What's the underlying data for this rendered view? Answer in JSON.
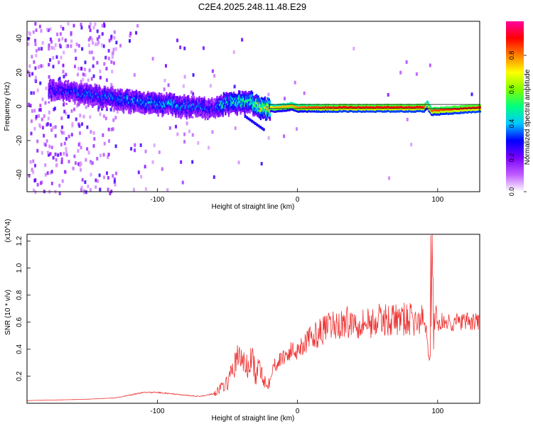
{
  "title": "C2E4.2025.248.11.48.E29",
  "chart_data": [
    {
      "type": "heatmap",
      "title": "C2E4.2025.248.11.48.E29",
      "xlabel": "Height of straight line (km)",
      "ylabel": "Frequency (Hz)",
      "xlim": [
        -193,
        130
      ],
      "ylim": [
        -50,
        50
      ],
      "xticks": [
        -100,
        0,
        100
      ],
      "xtick_labels": [
        "-100",
        "0",
        "100"
      ],
      "yticks": [
        -40,
        -20,
        0,
        20,
        40
      ],
      "ytick_labels": [
        "-40",
        "-20",
        "0",
        "20",
        "40"
      ],
      "colorbar": {
        "label": "Normalized spectral amplitude",
        "range": [
          0,
          1
        ],
        "ticks": [
          0,
          0.2,
          0.4,
          0.6,
          0.8
        ],
        "tick_labels": [
          "0.0",
          "0.2",
          "0.4",
          "0.6",
          "0.8"
        ],
        "colors": [
          "#ffffff",
          "#c05cff",
          "#7a00ff",
          "#0000ff",
          "#00c8ff",
          "#00ff80",
          "#80ff00",
          "#ffff00",
          "#ff8000",
          "#ff0000",
          "#ff00a0"
        ]
      },
      "ridge": {
        "x": [
          -170,
          -150,
          -130,
          -110,
          -90,
          -70,
          -60,
          -55,
          -45,
          -35,
          -25,
          -15,
          -5,
          0,
          10,
          30,
          60,
          90,
          92,
          95,
          130
        ],
        "frequency": [
          10,
          8,
          5,
          3,
          2,
          0,
          -1,
          2,
          3,
          4,
          0,
          0,
          1,
          0,
          0,
          0,
          0,
          0,
          2,
          -2,
          0
        ],
        "amplitude": [
          0.3,
          0.35,
          0.35,
          0.4,
          0.4,
          0.35,
          0.3,
          0.45,
          0.5,
          0.5,
          0.7,
          0.8,
          0.8,
          0.85,
          0.9,
          0.95,
          0.95,
          0.95,
          0.7,
          0.9,
          0.97
        ]
      }
    },
    {
      "type": "line",
      "xlabel": "Height of straight line (km)",
      "ylabel": "SNR (10 * v/v)",
      "y_multiplier": "(x10^4)",
      "xlim": [
        -193,
        130
      ],
      "ylim": [
        0,
        1.25
      ],
      "xticks": [
        -100,
        0,
        100
      ],
      "xtick_labels": [
        "-100",
        "0",
        "100"
      ],
      "yticks": [
        0.2,
        0.4,
        0.6,
        0.8,
        1.0,
        1.2
      ],
      "ytick_labels": [
        "0.2",
        "0.4",
        "0.6",
        "0.8",
        "1.0",
        "1.2"
      ],
      "series": [
        {
          "name": "SNR",
          "color": "#ee3333",
          "x": [
            -193,
            -170,
            -150,
            -130,
            -120,
            -110,
            -100,
            -90,
            -80,
            -70,
            -60,
            -50,
            -45,
            -42,
            -38,
            -35,
            -32,
            -30,
            -27,
            -25,
            -22,
            -20,
            -18,
            -15,
            -12,
            -10,
            -5,
            0,
            5,
            10,
            15,
            20,
            25,
            30,
            35,
            40,
            45,
            50,
            55,
            60,
            70,
            80,
            85,
            88,
            90,
            92,
            94,
            95,
            96,
            97,
            98,
            100,
            105,
            110,
            120,
            130
          ],
          "y": [
            0.02,
            0.025,
            0.03,
            0.04,
            0.06,
            0.08,
            0.08,
            0.07,
            0.06,
            0.05,
            0.07,
            0.15,
            0.28,
            0.35,
            0.3,
            0.25,
            0.35,
            0.18,
            0.28,
            0.22,
            0.12,
            0.18,
            0.26,
            0.3,
            0.32,
            0.35,
            0.38,
            0.4,
            0.45,
            0.48,
            0.52,
            0.55,
            0.57,
            0.58,
            0.6,
            0.6,
            0.6,
            0.6,
            0.6,
            0.62,
            0.62,
            0.62,
            0.6,
            0.6,
            0.62,
            0.55,
            0.3,
            0.8,
            1.25,
            0.5,
            0.7,
            0.6,
            0.6,
            0.6,
            0.6,
            0.6
          ]
        }
      ]
    }
  ]
}
